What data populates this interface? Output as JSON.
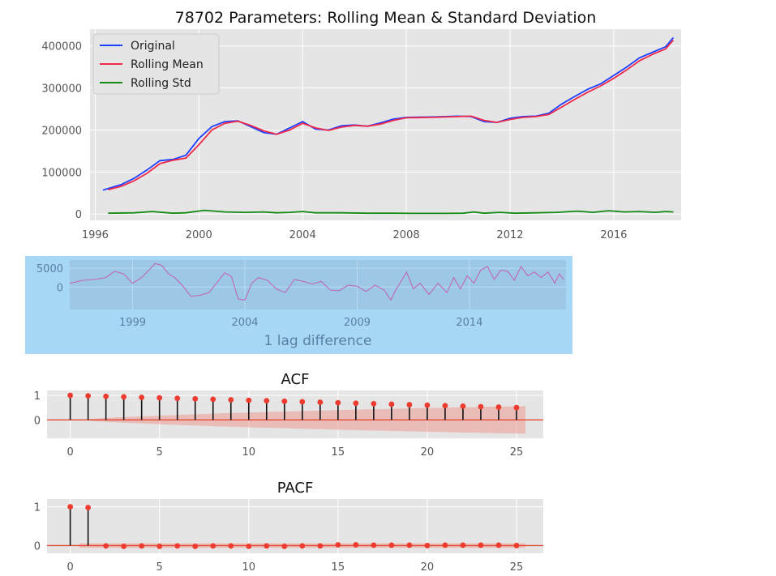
{
  "chart_data": [
    {
      "type": "line",
      "title": "78702 Parameters: Rolling Mean & Standard Deviation",
      "xlim": [
        1995.8,
        2018.6
      ],
      "ylim": [
        -15000,
        440000
      ],
      "xticks": [
        1996,
        2000,
        2004,
        2008,
        2012,
        2016
      ],
      "yticks": [
        0,
        100000,
        200000,
        300000,
        400000
      ],
      "legend_position": "upper-left",
      "grid": true,
      "series": [
        {
          "name": "Original",
          "color": "#1f3fff",
          "x": [
            1996.3,
            1997.0,
            1997.5,
            1998.0,
            1998.5,
            1999.0,
            1999.5,
            2000.0,
            2000.5,
            2001.0,
            2001.5,
            2002.0,
            2002.5,
            2003.0,
            2003.5,
            2004.0,
            2004.5,
            2005.0,
            2005.5,
            2006.0,
            2006.5,
            2007.0,
            2007.5,
            2008.0,
            2009.0,
            2010.0,
            2010.5,
            2011.0,
            2011.5,
            2012.0,
            2012.5,
            2013.0,
            2013.5,
            2014.0,
            2014.5,
            2015.0,
            2015.5,
            2016.0,
            2016.5,
            2017.0,
            2017.5,
            2018.0,
            2018.3
          ],
          "y": [
            57000,
            70000,
            85000,
            105000,
            127000,
            130000,
            140000,
            180000,
            208000,
            220000,
            222000,
            208000,
            194000,
            190000,
            205000,
            220000,
            202000,
            200000,
            210000,
            212000,
            209000,
            217000,
            226000,
            230000,
            231000,
            233000,
            232000,
            220000,
            218000,
            228000,
            232000,
            233000,
            240000,
            262000,
            280000,
            297000,
            310000,
            330000,
            350000,
            372000,
            385000,
            398000,
            420000
          ]
        },
        {
          "name": "Rolling Mean",
          "color": "#f0284a",
          "x": [
            1996.5,
            1997.0,
            1997.5,
            1998.0,
            1998.5,
            1999.0,
            1999.5,
            2000.0,
            2000.5,
            2001.0,
            2001.5,
            2002.0,
            2002.5,
            2003.0,
            2003.5,
            2004.0,
            2004.5,
            2005.0,
            2005.5,
            2006.0,
            2006.5,
            2007.0,
            2007.5,
            2008.0,
            2009.0,
            2010.0,
            2010.5,
            2011.0,
            2011.5,
            2012.0,
            2012.5,
            2013.0,
            2013.5,
            2014.0,
            2014.5,
            2015.0,
            2015.5,
            2016.0,
            2016.5,
            2017.0,
            2017.5,
            2018.0,
            2018.3
          ],
          "y": [
            58000,
            66000,
            79000,
            97000,
            120000,
            128000,
            133000,
            165000,
            200000,
            216000,
            221000,
            211000,
            198000,
            190000,
            200000,
            216000,
            205000,
            199000,
            207000,
            211000,
            209000,
            214000,
            223000,
            229000,
            230000,
            232000,
            233000,
            223000,
            218000,
            225000,
            230000,
            232000,
            237000,
            255000,
            273000,
            290000,
            305000,
            323000,
            343000,
            365000,
            380000,
            393000,
            414000
          ]
        },
        {
          "name": "Rolling Std",
          "color": "#148a14",
          "x": [
            1996.5,
            1997.5,
            1998.2,
            1999.0,
            1999.5,
            2000.2,
            2001.0,
            2001.8,
            2002.5,
            2003.0,
            2003.5,
            2004.0,
            2004.5,
            2005.5,
            2006.5,
            2007.5,
            2008.5,
            2009.5,
            2010.2,
            2010.6,
            2011.0,
            2011.6,
            2012.2,
            2013.0,
            2013.8,
            2014.6,
            2015.2,
            2015.8,
            2016.4,
            2017.0,
            2017.6,
            2018.0,
            2018.3
          ],
          "y": [
            2000,
            3000,
            6000,
            2000,
            3000,
            9000,
            5000,
            4000,
            5000,
            3000,
            4000,
            6000,
            3000,
            3000,
            2000,
            2000,
            1500,
            1500,
            2000,
            5000,
            2000,
            4000,
            2000,
            3000,
            4000,
            7000,
            4000,
            8000,
            5000,
            6000,
            4000,
            6000,
            5000
          ]
        }
      ]
    },
    {
      "type": "line",
      "xlabel": "1 lag difference",
      "xlim": [
        1996.2,
        2018.3
      ],
      "ylim": [
        -6000,
        7200
      ],
      "xticks": [
        1999,
        2004,
        2009,
        2014
      ],
      "yticks": [
        0,
        5000
      ],
      "background": "#a6d7f7",
      "series": [
        {
          "color": "#c066b8",
          "x": [
            1996.2,
            1996.8,
            1997.3,
            1997.8,
            1998.2,
            1998.6,
            1999.0,
            1999.4,
            1999.8,
            2000.0,
            2000.3,
            2000.6,
            2000.9,
            2001.2,
            2001.6,
            2002.0,
            2002.4,
            2002.8,
            2003.1,
            2003.4,
            2003.7,
            2004.0,
            2004.3,
            2004.6,
            2005.0,
            2005.4,
            2005.8,
            2006.2,
            2006.6,
            2007.0,
            2007.4,
            2007.8,
            2008.2,
            2008.6,
            2009.0,
            2009.4,
            2009.8,
            2010.2,
            2010.5,
            2010.7,
            2010.9,
            2011.2,
            2011.5,
            2011.8,
            2012.2,
            2012.6,
            2013.0,
            2013.3,
            2013.6,
            2013.9,
            2014.2,
            2014.5,
            2014.8,
            2015.1,
            2015.4,
            2015.7,
            2016.0,
            2016.3,
            2016.6,
            2016.9,
            2017.2,
            2017.5,
            2017.8,
            2018.0,
            2018.2
          ],
          "y": [
            1000,
            1800,
            2000,
            2500,
            4200,
            3500,
            1000,
            2500,
            5000,
            6300,
            5800,
            3500,
            2400,
            500,
            -2500,
            -2200,
            -1500,
            1500,
            3800,
            2800,
            -3200,
            -3500,
            1000,
            2500,
            1800,
            -500,
            -1500,
            2000,
            1500,
            800,
            1500,
            -800,
            -1000,
            500,
            200,
            -1200,
            500,
            -800,
            -3500,
            -1000,
            1000,
            4000,
            -500,
            1000,
            -2000,
            1000,
            -1500,
            2500,
            -500,
            3000,
            1000,
            4500,
            5500,
            2000,
            4500,
            4200,
            1800,
            5500,
            3000,
            4000,
            2500,
            4000,
            1000,
            3500,
            2000
          ]
        }
      ]
    },
    {
      "type": "stem",
      "title": "ACF",
      "xlim": [
        -1.3,
        26.5
      ],
      "ylim": [
        -0.75,
        1.2
      ],
      "xticks": [
        0,
        5,
        10,
        15,
        20,
        25
      ],
      "yticks": [
        0,
        1
      ],
      "lags": [
        0,
        1,
        2,
        3,
        4,
        5,
        6,
        7,
        8,
        9,
        10,
        11,
        12,
        13,
        14,
        15,
        16,
        17,
        18,
        19,
        20,
        21,
        22,
        23,
        24,
        25
      ],
      "values": [
        1.0,
        0.98,
        0.96,
        0.94,
        0.92,
        0.9,
        0.88,
        0.86,
        0.84,
        0.82,
        0.8,
        0.78,
        0.76,
        0.74,
        0.72,
        0.7,
        0.68,
        0.66,
        0.64,
        0.62,
        0.6,
        0.58,
        0.56,
        0.54,
        0.52,
        0.5
      ],
      "confidence_band_upper": [
        0.0,
        0.06,
        0.1,
        0.13,
        0.16,
        0.19,
        0.22,
        0.24,
        0.27,
        0.29,
        0.31,
        0.33,
        0.35,
        0.37,
        0.39,
        0.41,
        0.43,
        0.44,
        0.46,
        0.48,
        0.49,
        0.51,
        0.52,
        0.54,
        0.55,
        0.56
      ]
    },
    {
      "type": "stem",
      "title": "PACF",
      "xlim": [
        -1.3,
        26.5
      ],
      "ylim": [
        -0.2,
        1.2
      ],
      "xticks": [
        0,
        5,
        10,
        15,
        20,
        25
      ],
      "yticks": [
        0,
        1
      ],
      "lags": [
        0,
        1,
        2,
        3,
        4,
        5,
        6,
        7,
        8,
        9,
        10,
        11,
        12,
        13,
        14,
        15,
        16,
        17,
        18,
        19,
        20,
        21,
        22,
        23,
        24,
        25
      ],
      "values": [
        1.0,
        0.98,
        -0.01,
        -0.02,
        -0.01,
        -0.02,
        -0.01,
        -0.02,
        -0.01,
        -0.01,
        -0.02,
        -0.01,
        -0.02,
        -0.01,
        -0.01,
        0.02,
        0.02,
        0.01,
        0.01,
        0.01,
        0.0,
        0.01,
        0.01,
        0.01,
        0.01,
        0.0
      ],
      "confidence_band": 0.06
    }
  ]
}
